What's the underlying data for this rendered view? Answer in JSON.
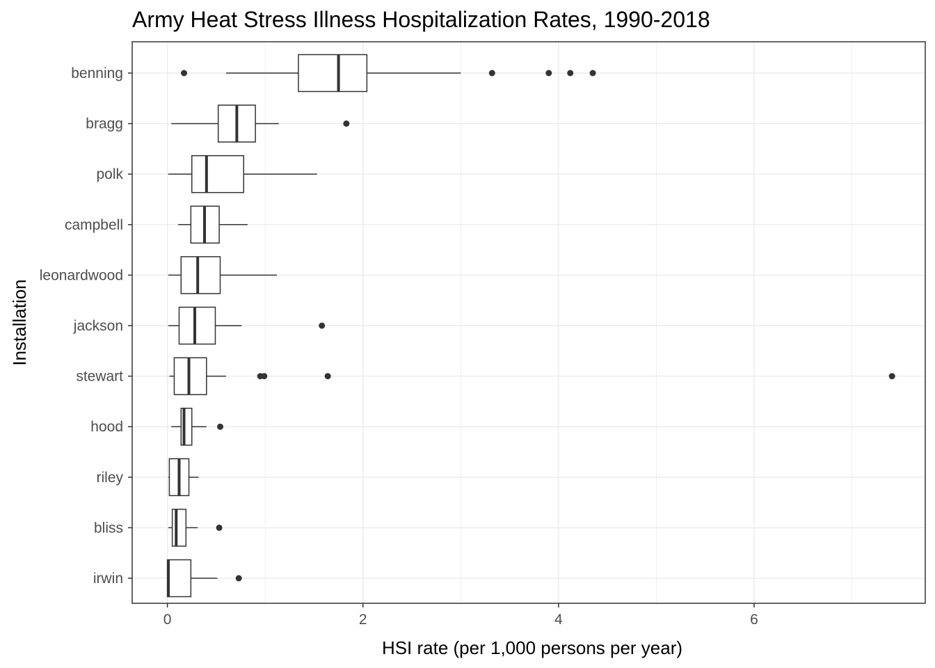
{
  "chart_data": {
    "type": "boxplot",
    "orientation": "horizontal",
    "title": "Army Heat Stress Illness Hospitalization Rates, 1990-2018",
    "xlabel": "HSI rate (per 1,000 persons per year)",
    "ylabel": "Installation",
    "xlim": [
      -0.36,
      7.75
    ],
    "x_ticks": [
      0,
      2,
      4,
      6
    ],
    "grid": true,
    "categories": [
      "benning",
      "bragg",
      "polk",
      "campbell",
      "leonardwood",
      "jackson",
      "stewart",
      "hood",
      "riley",
      "bliss",
      "irwin"
    ],
    "boxes": [
      {
        "name": "benning",
        "whisker_low": 0.6,
        "q1": 1.34,
        "median": 1.75,
        "q3": 2.04,
        "whisker_high": 3.0,
        "outliers": [
          0.17,
          3.32,
          3.9,
          4.12,
          4.35
        ]
      },
      {
        "name": "bragg",
        "whisker_low": 0.04,
        "q1": 0.52,
        "median": 0.71,
        "q3": 0.9,
        "whisker_high": 1.14,
        "outliers": [
          1.83
        ]
      },
      {
        "name": "polk",
        "whisker_low": 0.01,
        "q1": 0.25,
        "median": 0.4,
        "q3": 0.78,
        "whisker_high": 1.53,
        "outliers": []
      },
      {
        "name": "campbell",
        "whisker_low": 0.11,
        "q1": 0.24,
        "median": 0.38,
        "q3": 0.53,
        "whisker_high": 0.82,
        "outliers": []
      },
      {
        "name": "leonardwood",
        "whisker_low": 0.01,
        "q1": 0.14,
        "median": 0.31,
        "q3": 0.54,
        "whisker_high": 1.12,
        "outliers": []
      },
      {
        "name": "jackson",
        "whisker_low": 0.01,
        "q1": 0.12,
        "median": 0.28,
        "q3": 0.49,
        "whisker_high": 0.76,
        "outliers": [
          1.58
        ]
      },
      {
        "name": "stewart",
        "whisker_low": 0.02,
        "q1": 0.07,
        "median": 0.22,
        "q3": 0.4,
        "whisker_high": 0.6,
        "outliers": [
          0.95,
          0.99,
          1.64,
          7.41
        ]
      },
      {
        "name": "hood",
        "whisker_low": 0.04,
        "q1": 0.14,
        "median": 0.17,
        "q3": 0.25,
        "whisker_high": 0.4,
        "outliers": [
          0.54
        ]
      },
      {
        "name": "riley",
        "whisker_low": 0.01,
        "q1": 0.02,
        "median": 0.12,
        "q3": 0.22,
        "whisker_high": 0.32,
        "outliers": []
      },
      {
        "name": "bliss",
        "whisker_low": 0.01,
        "q1": 0.05,
        "median": 0.09,
        "q3": 0.19,
        "whisker_high": 0.31,
        "outliers": [
          0.53
        ]
      },
      {
        "name": "irwin",
        "whisker_low": 0.0,
        "q1": 0.0,
        "median": 0.01,
        "q3": 0.24,
        "whisker_high": 0.51,
        "outliers": [
          0.73
        ]
      }
    ],
    "colors": {
      "box_stroke": "#333333",
      "grid": "#ebebeb",
      "panel_border": "#333333",
      "tick_label": "#4d4d4d"
    }
  }
}
